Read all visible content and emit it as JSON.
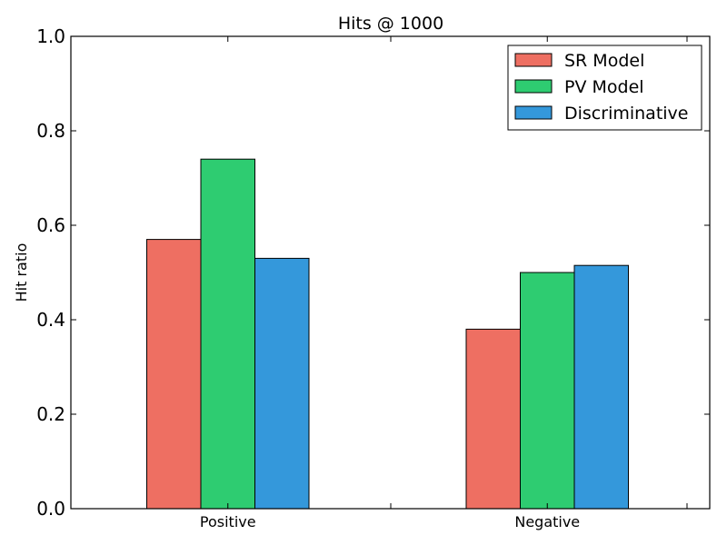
{
  "chart_data": {
    "type": "bar",
    "title": "Hits @ 1000",
    "xlabel": "",
    "ylabel": "Hit ratio",
    "ylim": [
      0,
      1
    ],
    "yticks": [
      "0.0",
      "0.2",
      "0.4",
      "0.6",
      "0.8",
      "1.0"
    ],
    "categories": [
      "Positive",
      "Negative"
    ],
    "series": [
      {
        "name": "SR Model",
        "values": [
          0.57,
          0.38
        ],
        "color": "#ee6f62"
      },
      {
        "name": "PV Model",
        "values": [
          0.74,
          0.5
        ],
        "color": "#2ecc71"
      },
      {
        "name": "Discriminative",
        "values": [
          0.53,
          0.515
        ],
        "color": "#3498db"
      }
    ],
    "legend_position": "top-right",
    "grid": false
  }
}
